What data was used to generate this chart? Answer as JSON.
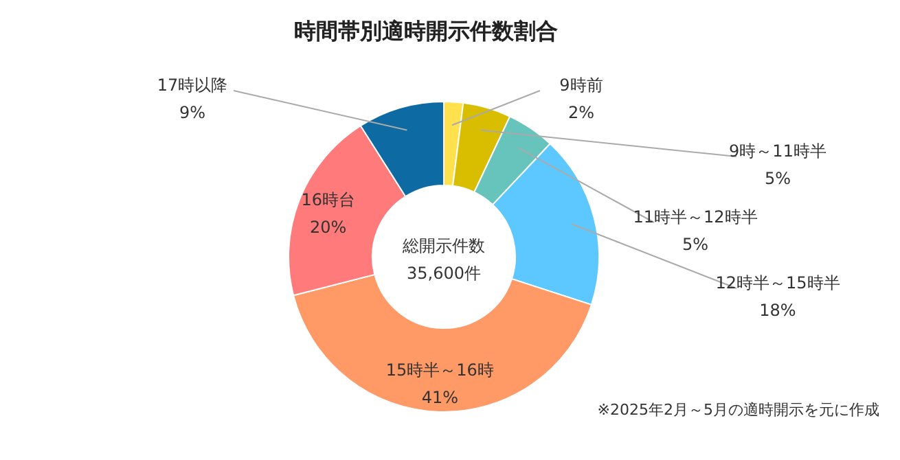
{
  "chart_data": {
    "type": "donut",
    "title": "時間帯別適時開示件数割合",
    "categories": [
      "9時前",
      "9時～11時半",
      "11時半～12時半",
      "12時半～15時半",
      "15時半～16時",
      "16時台",
      "17時以降"
    ],
    "values": [
      2,
      5,
      5,
      18,
      41,
      20,
      9
    ],
    "colors": [
      "#ffe14d",
      "#d9be00",
      "#66c4bc",
      "#5cc8ff",
      "#ff9966",
      "#ff7b7b",
      "#0d6aa3"
    ],
    "value_labels": [
      "2%",
      "5%",
      "5%",
      "18%",
      "41%",
      "20%",
      "9%"
    ],
    "annotations": [
      "総開示件数",
      "35,600件",
      "※2025年2月～5月の適時開示を元に作成"
    ]
  }
}
